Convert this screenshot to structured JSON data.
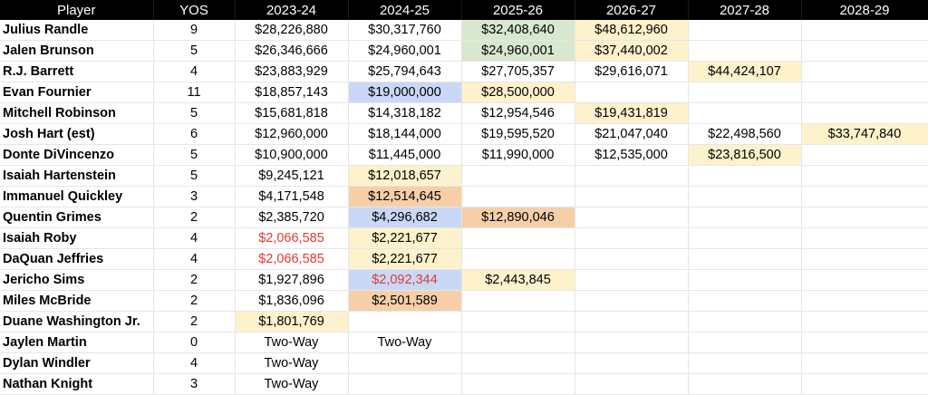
{
  "table": {
    "headers": [
      "Player",
      "YOS",
      "2023-24",
      "2024-25",
      "2025-26",
      "2026-27",
      "2027-28",
      "2028-29"
    ],
    "rows": [
      {
        "player": "Julius Randle",
        "yos": "9",
        "cells": [
          {
            "text": "$28,226,880",
            "bg": "",
            "color": ""
          },
          {
            "text": "$30,317,760",
            "bg": "",
            "color": ""
          },
          {
            "text": "$32,408,640",
            "bg": "green",
            "color": ""
          },
          {
            "text": "$48,612,960",
            "bg": "yellow",
            "color": ""
          },
          {
            "text": "",
            "bg": "",
            "color": ""
          },
          {
            "text": "",
            "bg": "",
            "color": ""
          }
        ]
      },
      {
        "player": "Jalen Brunson",
        "yos": "5",
        "cells": [
          {
            "text": "$26,346,666",
            "bg": "",
            "color": ""
          },
          {
            "text": "$24,960,001",
            "bg": "",
            "color": ""
          },
          {
            "text": "$24,960,001",
            "bg": "green",
            "color": ""
          },
          {
            "text": "$37,440,002",
            "bg": "yellow",
            "color": ""
          },
          {
            "text": "",
            "bg": "",
            "color": ""
          },
          {
            "text": "",
            "bg": "",
            "color": ""
          }
        ]
      },
      {
        "player": "R.J. Barrett",
        "yos": "4",
        "cells": [
          {
            "text": "$23,883,929",
            "bg": "",
            "color": ""
          },
          {
            "text": "$25,794,643",
            "bg": "",
            "color": ""
          },
          {
            "text": "$27,705,357",
            "bg": "",
            "color": ""
          },
          {
            "text": "$29,616,071",
            "bg": "",
            "color": ""
          },
          {
            "text": "$44,424,107",
            "bg": "yellow",
            "color": ""
          },
          {
            "text": "",
            "bg": "",
            "color": ""
          }
        ]
      },
      {
        "player": "Evan Fournier",
        "yos": "11",
        "cells": [
          {
            "text": "$18,857,143",
            "bg": "",
            "color": ""
          },
          {
            "text": "$19,000,000",
            "bg": "blue",
            "color": ""
          },
          {
            "text": "$28,500,000",
            "bg": "yellow",
            "color": ""
          },
          {
            "text": "",
            "bg": "",
            "color": ""
          },
          {
            "text": "",
            "bg": "",
            "color": ""
          },
          {
            "text": "",
            "bg": "",
            "color": ""
          }
        ]
      },
      {
        "player": "Mitchell Robinson",
        "yos": "5",
        "cells": [
          {
            "text": "$15,681,818",
            "bg": "",
            "color": ""
          },
          {
            "text": "$14,318,182",
            "bg": "",
            "color": ""
          },
          {
            "text": "$12,954,546",
            "bg": "",
            "color": ""
          },
          {
            "text": "$19,431,819",
            "bg": "yellow",
            "color": ""
          },
          {
            "text": "",
            "bg": "",
            "color": ""
          },
          {
            "text": "",
            "bg": "",
            "color": ""
          }
        ]
      },
      {
        "player": "Josh Hart (est)",
        "yos": "6",
        "cells": [
          {
            "text": "$12,960,000",
            "bg": "",
            "color": ""
          },
          {
            "text": "$18,144,000",
            "bg": "",
            "color": ""
          },
          {
            "text": "$19,595,520",
            "bg": "",
            "color": ""
          },
          {
            "text": "$21,047,040",
            "bg": "",
            "color": ""
          },
          {
            "text": "$22,498,560",
            "bg": "",
            "color": ""
          },
          {
            "text": "$33,747,840",
            "bg": "yellow",
            "color": ""
          }
        ]
      },
      {
        "player": "Donte DiVincenzo",
        "yos": "5",
        "cells": [
          {
            "text": "$10,900,000",
            "bg": "",
            "color": ""
          },
          {
            "text": "$11,445,000",
            "bg": "",
            "color": ""
          },
          {
            "text": "$11,990,000",
            "bg": "",
            "color": ""
          },
          {
            "text": "$12,535,000",
            "bg": "",
            "color": ""
          },
          {
            "text": "$23,816,500",
            "bg": "yellow",
            "color": ""
          },
          {
            "text": "",
            "bg": "",
            "color": ""
          }
        ]
      },
      {
        "player": "Isaiah Hartenstein",
        "yos": "5",
        "cells": [
          {
            "text": "$9,245,121",
            "bg": "",
            "color": ""
          },
          {
            "text": "$12,018,657",
            "bg": "yellow",
            "color": ""
          },
          {
            "text": "",
            "bg": "",
            "color": ""
          },
          {
            "text": "",
            "bg": "",
            "color": ""
          },
          {
            "text": "",
            "bg": "",
            "color": ""
          },
          {
            "text": "",
            "bg": "",
            "color": ""
          }
        ]
      },
      {
        "player": "Immanuel Quickley",
        "yos": "3",
        "cells": [
          {
            "text": "$4,171,548",
            "bg": "",
            "color": ""
          },
          {
            "text": "$12,514,645",
            "bg": "orange",
            "color": ""
          },
          {
            "text": "",
            "bg": "",
            "color": ""
          },
          {
            "text": "",
            "bg": "",
            "color": ""
          },
          {
            "text": "",
            "bg": "",
            "color": ""
          },
          {
            "text": "",
            "bg": "",
            "color": ""
          }
        ]
      },
      {
        "player": "Quentin Grimes",
        "yos": "2",
        "cells": [
          {
            "text": "$2,385,720",
            "bg": "",
            "color": ""
          },
          {
            "text": "$4,296,682",
            "bg": "blue",
            "color": ""
          },
          {
            "text": "$12,890,046",
            "bg": "orange",
            "color": ""
          },
          {
            "text": "",
            "bg": "",
            "color": ""
          },
          {
            "text": "",
            "bg": "",
            "color": ""
          },
          {
            "text": "",
            "bg": "",
            "color": ""
          }
        ]
      },
      {
        "player": "Isaiah Roby",
        "yos": "4",
        "cells": [
          {
            "text": "$2,066,585",
            "bg": "",
            "color": "red"
          },
          {
            "text": "$2,221,677",
            "bg": "yellow",
            "color": ""
          },
          {
            "text": "",
            "bg": "",
            "color": ""
          },
          {
            "text": "",
            "bg": "",
            "color": ""
          },
          {
            "text": "",
            "bg": "",
            "color": ""
          },
          {
            "text": "",
            "bg": "",
            "color": ""
          }
        ]
      },
      {
        "player": "DaQuan Jeffries",
        "yos": "4",
        "cells": [
          {
            "text": "$2,066,585",
            "bg": "",
            "color": "red"
          },
          {
            "text": "$2,221,677",
            "bg": "yellow",
            "color": ""
          },
          {
            "text": "",
            "bg": "",
            "color": ""
          },
          {
            "text": "",
            "bg": "",
            "color": ""
          },
          {
            "text": "",
            "bg": "",
            "color": ""
          },
          {
            "text": "",
            "bg": "",
            "color": ""
          }
        ]
      },
      {
        "player": "Jericho Sims",
        "yos": "2",
        "cells": [
          {
            "text": "$1,927,896",
            "bg": "",
            "color": ""
          },
          {
            "text": "$2,092,344",
            "bg": "blue",
            "color": "red"
          },
          {
            "text": "$2,443,845",
            "bg": "yellow",
            "color": ""
          },
          {
            "text": "",
            "bg": "",
            "color": ""
          },
          {
            "text": "",
            "bg": "",
            "color": ""
          },
          {
            "text": "",
            "bg": "",
            "color": ""
          }
        ]
      },
      {
        "player": "Miles McBride",
        "yos": "2",
        "cells": [
          {
            "text": "$1,836,096",
            "bg": "",
            "color": ""
          },
          {
            "text": "$2,501,589",
            "bg": "orange",
            "color": ""
          },
          {
            "text": "",
            "bg": "",
            "color": ""
          },
          {
            "text": "",
            "bg": "",
            "color": ""
          },
          {
            "text": "",
            "bg": "",
            "color": ""
          },
          {
            "text": "",
            "bg": "",
            "color": ""
          }
        ]
      },
      {
        "player": "Duane Washington Jr.",
        "yos": "2",
        "cells": [
          {
            "text": "$1,801,769",
            "bg": "yellow",
            "color": ""
          },
          {
            "text": "",
            "bg": "",
            "color": ""
          },
          {
            "text": "",
            "bg": "",
            "color": ""
          },
          {
            "text": "",
            "bg": "",
            "color": ""
          },
          {
            "text": "",
            "bg": "",
            "color": ""
          },
          {
            "text": "",
            "bg": "",
            "color": ""
          }
        ]
      },
      {
        "player": "Jaylen Martin",
        "yos": "0",
        "cells": [
          {
            "text": "Two-Way",
            "bg": "",
            "color": ""
          },
          {
            "text": "Two-Way",
            "bg": "",
            "color": ""
          },
          {
            "text": "",
            "bg": "",
            "color": ""
          },
          {
            "text": "",
            "bg": "",
            "color": ""
          },
          {
            "text": "",
            "bg": "",
            "color": ""
          },
          {
            "text": "",
            "bg": "",
            "color": ""
          }
        ]
      },
      {
        "player": "Dylan Windler",
        "yos": "4",
        "cells": [
          {
            "text": "Two-Way",
            "bg": "",
            "color": ""
          },
          {
            "text": "",
            "bg": "",
            "color": ""
          },
          {
            "text": "",
            "bg": "",
            "color": ""
          },
          {
            "text": "",
            "bg": "",
            "color": ""
          },
          {
            "text": "",
            "bg": "",
            "color": ""
          },
          {
            "text": "",
            "bg": "",
            "color": ""
          }
        ]
      },
      {
        "player": "Nathan Knight",
        "yos": "3",
        "cells": [
          {
            "text": "Two-Way",
            "bg": "",
            "color": ""
          },
          {
            "text": "",
            "bg": "",
            "color": ""
          },
          {
            "text": "",
            "bg": "",
            "color": ""
          },
          {
            "text": "",
            "bg": "",
            "color": ""
          },
          {
            "text": "",
            "bg": "",
            "color": ""
          },
          {
            "text": "",
            "bg": "",
            "color": ""
          }
        ]
      }
    ]
  },
  "colors": {
    "yellow": "#fdf2cc",
    "orange": "#f6cfa8",
    "blue": "#c9d8f6",
    "green": "#d8e8cf",
    "red_text": "#e03a2f",
    "header_bg": "#000000"
  }
}
